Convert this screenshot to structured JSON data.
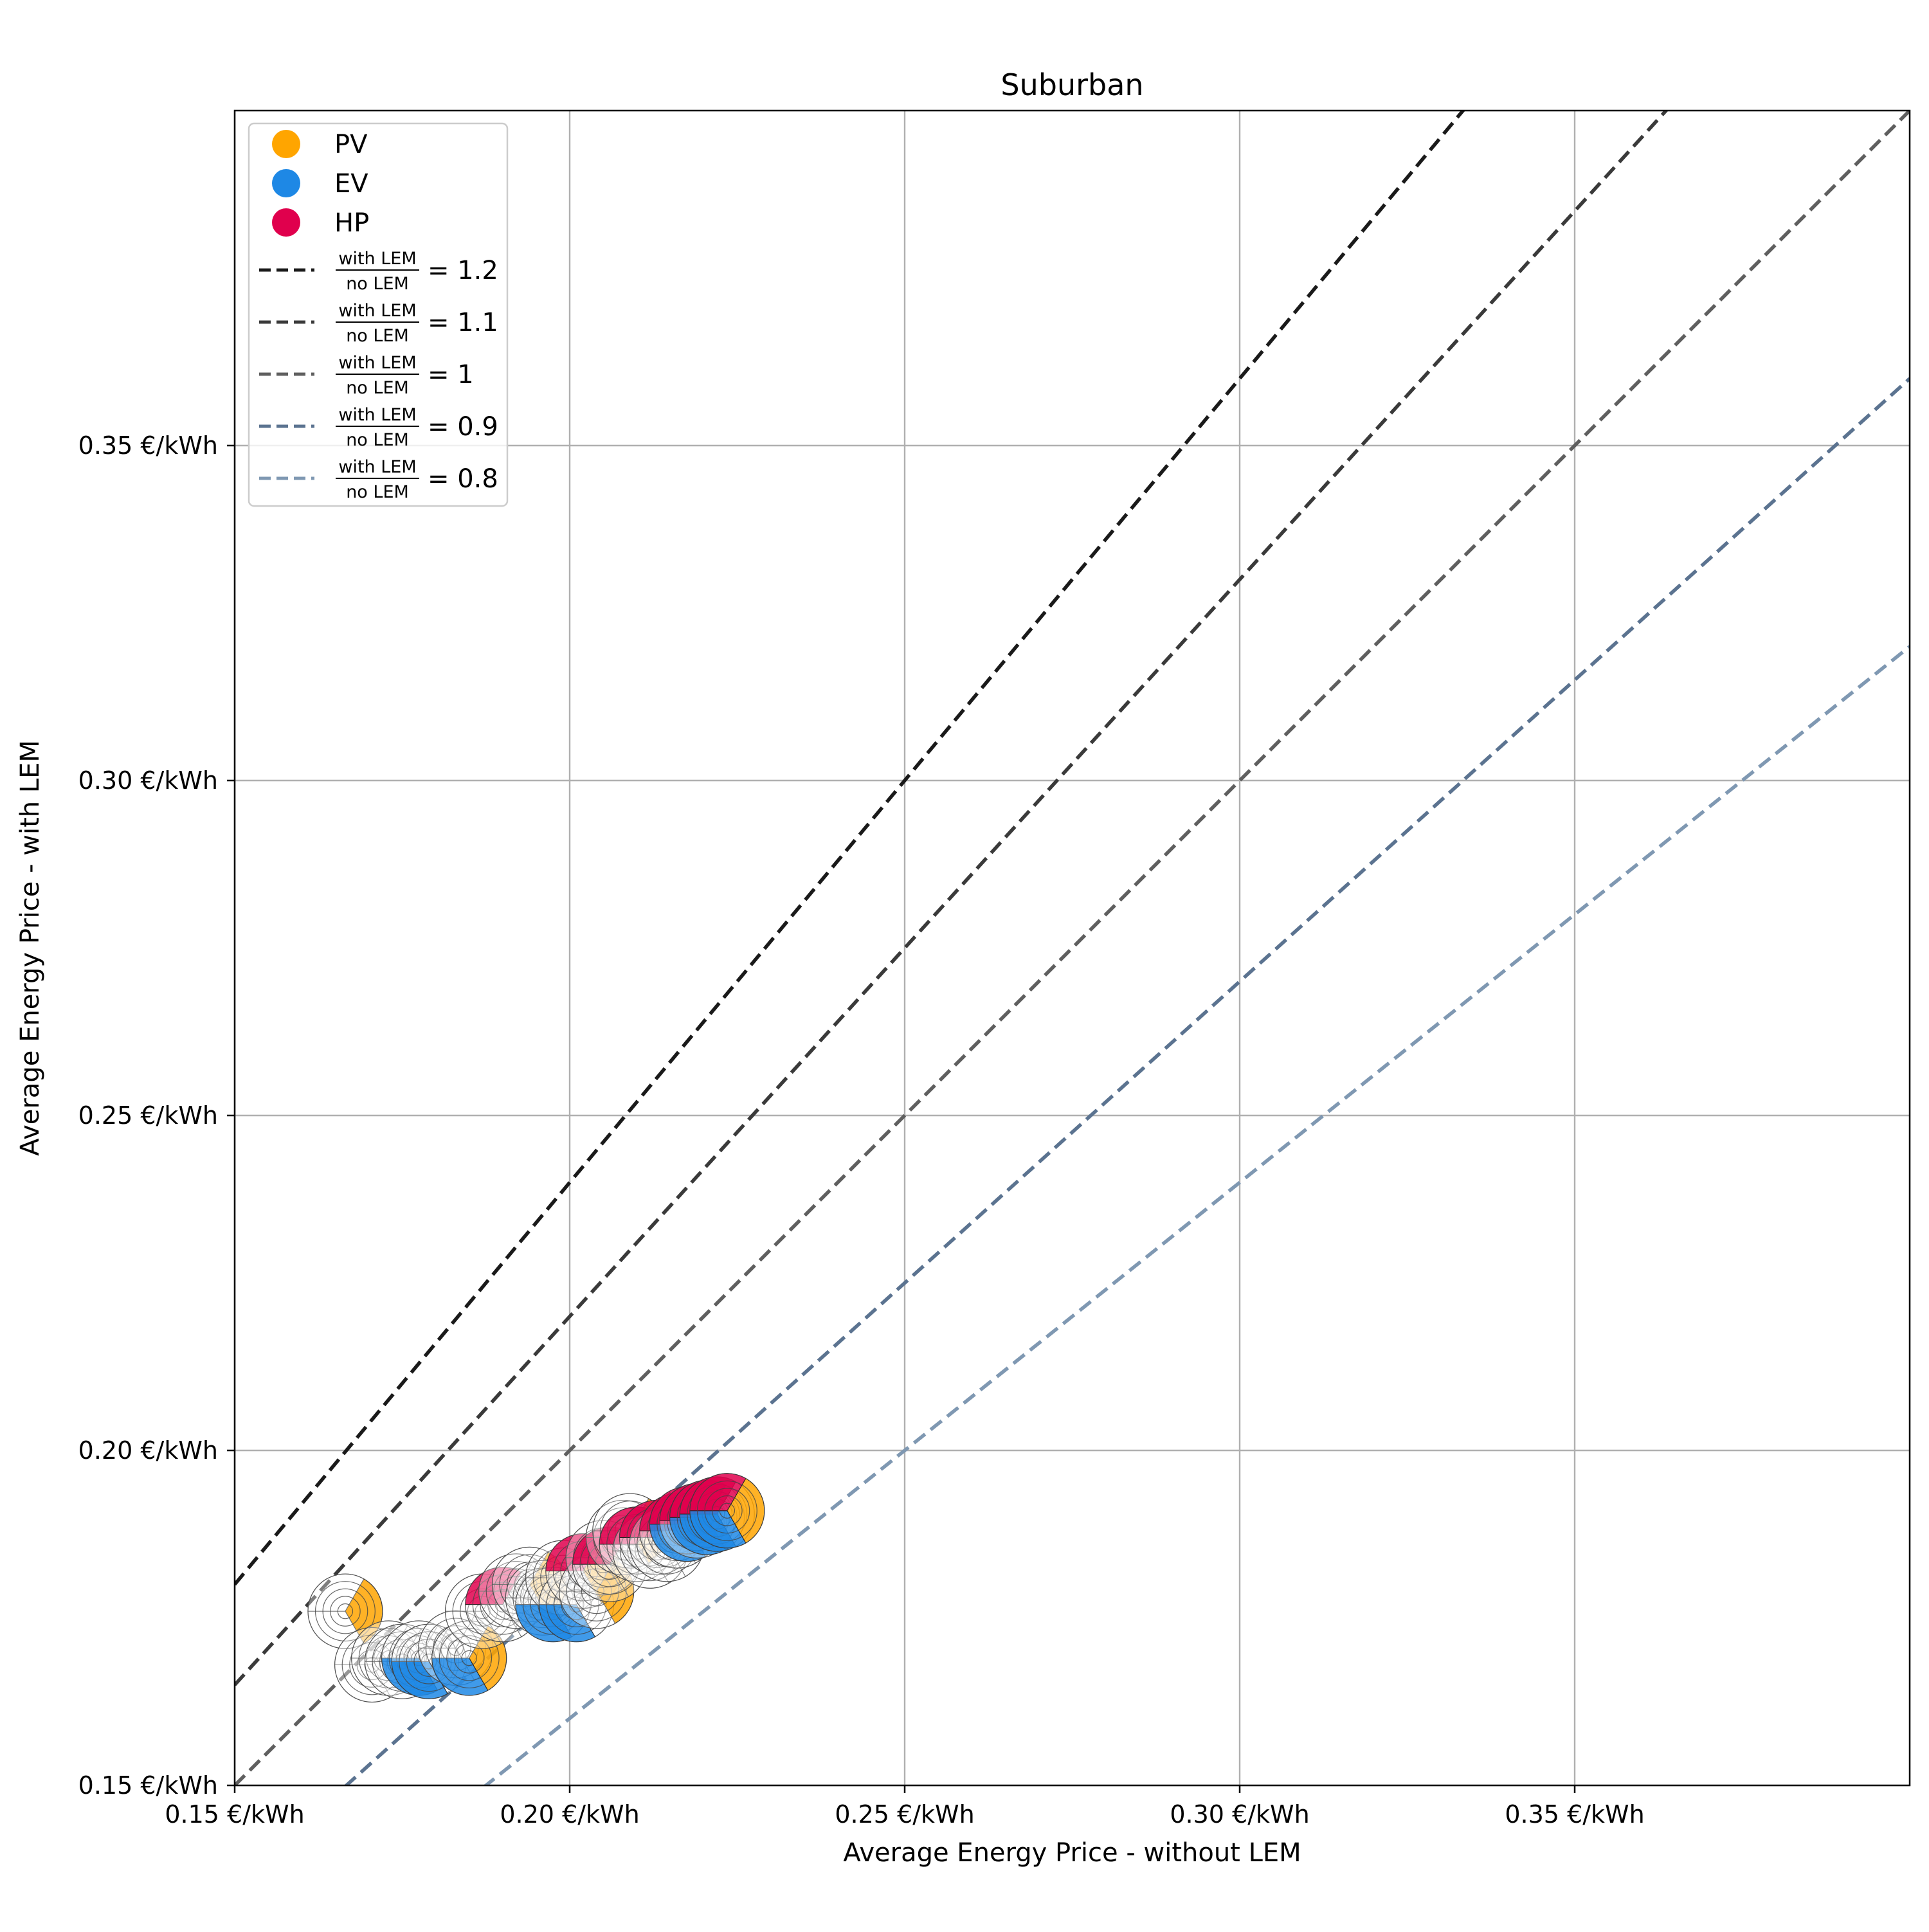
{
  "chart_data": {
    "type": "scatter",
    "title": "Suburban",
    "xlabel": "Average Energy Price - without LEM",
    "ylabel": "Average Energy Price - with LEM",
    "xlim": [
      0.15,
      0.4
    ],
    "ylim": [
      0.15,
      0.4
    ],
    "grid": true,
    "legend_position": "upper-left",
    "x_ticks": [
      {
        "value": 0.15,
        "label": "0.15 €/kWh"
      },
      {
        "value": 0.2,
        "label": "0.20 €/kWh"
      },
      {
        "value": 0.25,
        "label": "0.25 €/kWh"
      },
      {
        "value": 0.3,
        "label": "0.30 €/kWh"
      },
      {
        "value": 0.35,
        "label": "0.35 €/kWh"
      }
    ],
    "y_ticks": [
      {
        "value": 0.15,
        "label": "0.15 €/kWh"
      },
      {
        "value": 0.2,
        "label": "0.20 €/kWh"
      },
      {
        "value": 0.25,
        "label": "0.25 €/kWh"
      },
      {
        "value": 0.3,
        "label": "0.30 €/kWh"
      },
      {
        "value": 0.35,
        "label": "0.35 €/kWh"
      }
    ],
    "categories": [
      {
        "name": "PV",
        "color": "#ffa500"
      },
      {
        "name": "EV",
        "color": "#1e88e5"
      },
      {
        "name": "HP",
        "color": "#e0004d"
      }
    ],
    "reference_lines": [
      {
        "ratio": 1.2,
        "numerator": "with LEM",
        "denominator": "no LEM",
        "value_label": "= 1.2",
        "color": "#1a1a1a"
      },
      {
        "ratio": 1.1,
        "numerator": "with LEM",
        "denominator": "no LEM",
        "value_label": "= 1.1",
        "color": "#3a3a3a"
      },
      {
        "ratio": 1.0,
        "numerator": "with LEM",
        "denominator": "no LEM",
        "value_label": "= 1",
        "color": "#5f5f5f"
      },
      {
        "ratio": 0.9,
        "numerator": "with LEM",
        "denominator": "no LEM",
        "value_label": "= 0.9",
        "color": "#5b7390"
      },
      {
        "ratio": 0.8,
        "numerator": "with LEM",
        "denominator": "no LEM",
        "value_label": "= 0.8",
        "color": "#7f98b2"
      }
    ],
    "points": [
      {
        "x": 0.1665,
        "y": 0.176,
        "pv": true,
        "ev": false,
        "hp": false
      },
      {
        "x": 0.1705,
        "y": 0.168,
        "pv": false,
        "ev": false,
        "hp": false
      },
      {
        "x": 0.173,
        "y": 0.169,
        "pv": false,
        "ev": false,
        "hp": false
      },
      {
        "x": 0.175,
        "y": 0.1685,
        "pv": false,
        "ev": false,
        "hp": false
      },
      {
        "x": 0.1775,
        "y": 0.169,
        "pv": false,
        "ev": true,
        "hp": false
      },
      {
        "x": 0.179,
        "y": 0.1685,
        "pv": false,
        "ev": true,
        "hp": false
      },
      {
        "x": 0.183,
        "y": 0.1705,
        "pv": false,
        "ev": false,
        "hp": false
      },
      {
        "x": 0.185,
        "y": 0.169,
        "pv": true,
        "ev": true,
        "hp": false
      },
      {
        "x": 0.187,
        "y": 0.176,
        "pv": false,
        "ev": false,
        "hp": false
      },
      {
        "x": 0.19,
        "y": 0.177,
        "pv": false,
        "ev": false,
        "hp": true
      },
      {
        "x": 0.192,
        "y": 0.179,
        "pv": false,
        "ev": false,
        "hp": false
      },
      {
        "x": 0.194,
        "y": 0.18,
        "pv": true,
        "ev": false,
        "hp": false
      },
      {
        "x": 0.196,
        "y": 0.178,
        "pv": false,
        "ev": false,
        "hp": false
      },
      {
        "x": 0.1975,
        "y": 0.177,
        "pv": false,
        "ev": true,
        "hp": false
      },
      {
        "x": 0.199,
        "y": 0.181,
        "pv": false,
        "ev": false,
        "hp": false
      },
      {
        "x": 0.201,
        "y": 0.177,
        "pv": false,
        "ev": true,
        "hp": false
      },
      {
        "x": 0.202,
        "y": 0.182,
        "pv": true,
        "ev": false,
        "hp": true
      },
      {
        "x": 0.204,
        "y": 0.179,
        "pv": true,
        "ev": false,
        "hp": false
      },
      {
        "x": 0.205,
        "y": 0.184,
        "pv": false,
        "ev": false,
        "hp": false
      },
      {
        "x": 0.206,
        "y": 0.183,
        "pv": false,
        "ev": false,
        "hp": true
      },
      {
        "x": 0.208,
        "y": 0.187,
        "pv": false,
        "ev": false,
        "hp": false
      },
      {
        "x": 0.209,
        "y": 0.188,
        "pv": true,
        "ev": false,
        "hp": false
      },
      {
        "x": 0.21,
        "y": 0.186,
        "pv": false,
        "ev": false,
        "hp": true
      },
      {
        "x": 0.212,
        "y": 0.185,
        "pv": false,
        "ev": false,
        "hp": false
      },
      {
        "x": 0.213,
        "y": 0.187,
        "pv": false,
        "ev": false,
        "hp": true
      },
      {
        "x": 0.2145,
        "y": 0.186,
        "pv": false,
        "ev": false,
        "hp": false
      },
      {
        "x": 0.216,
        "y": 0.188,
        "pv": false,
        "ev": false,
        "hp": true
      },
      {
        "x": 0.2175,
        "y": 0.189,
        "pv": false,
        "ev": true,
        "hp": true
      },
      {
        "x": 0.219,
        "y": 0.1895,
        "pv": false,
        "ev": false,
        "hp": true
      },
      {
        "x": 0.2205,
        "y": 0.19,
        "pv": false,
        "ev": true,
        "hp": true
      },
      {
        "x": 0.222,
        "y": 0.1905,
        "pv": false,
        "ev": true,
        "hp": true
      },
      {
        "x": 0.2235,
        "y": 0.191,
        "pv": true,
        "ev": true,
        "hp": true
      }
    ]
  }
}
